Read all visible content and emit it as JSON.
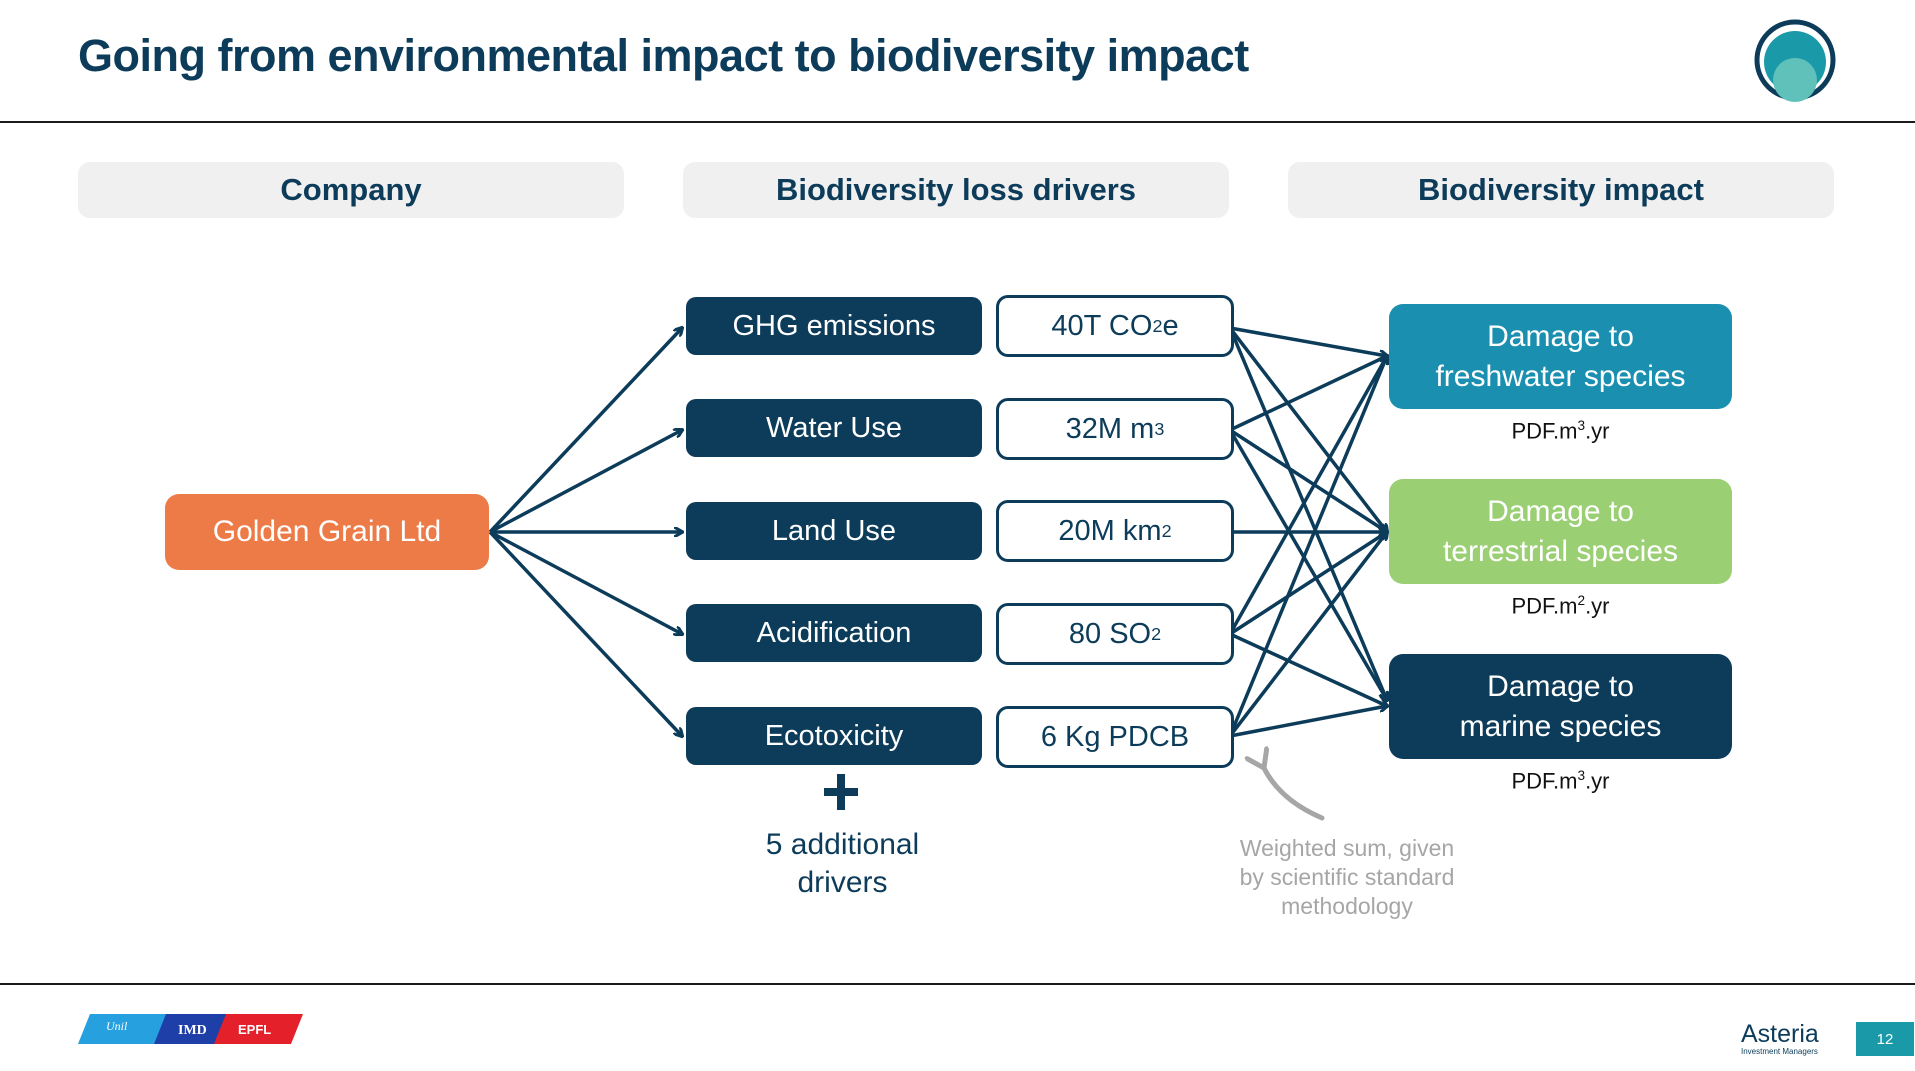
{
  "slide": {
    "title": "Going from environmental impact to biodiversity impact",
    "page_number": "12"
  },
  "headers": {
    "company": "Company",
    "drivers": "Biodiversity loss drivers",
    "impact": "Biodiversity impact"
  },
  "company": {
    "name": "Golden Grain Ltd",
    "color": "#ec7b47"
  },
  "drivers": [
    {
      "label": "GHG emissions",
      "value_main": "40T CO",
      "value_sub": "2",
      "value_suffix": "e"
    },
    {
      "label": "Water Use",
      "value_main": "32M m",
      "value_sup": "3"
    },
    {
      "label": "Land Use",
      "value_main": "20M km",
      "value_sup": "2"
    },
    {
      "label": "Acidification",
      "value_main": "80 SO",
      "value_sub": "2"
    },
    {
      "label": "Ecotoxicity",
      "value_main": "6 Kg PDCB"
    }
  ],
  "additional_drivers": {
    "line1": "5 additional",
    "line2": "drivers"
  },
  "impacts": [
    {
      "line1": "Damage to",
      "line2": "freshwater species",
      "unit_pre": "PDF.m",
      "unit_sup": "3",
      "unit_post": ".yr",
      "color": "#1b8fb0"
    },
    {
      "line1": "Damage to",
      "line2": "terrestrial species",
      "unit_pre": "PDF.m",
      "unit_sup": "2",
      "unit_post": ".yr",
      "color": "#9bcf73"
    },
    {
      "line1": "Damage to",
      "line2": "marine species",
      "unit_pre": "PDF.m",
      "unit_sup": "3",
      "unit_post": ".yr",
      "color": "#0c3c5a"
    }
  ],
  "annotation": {
    "line1": "Weighted sum, given",
    "line2": "by scientific standard",
    "line3": "methodology"
  },
  "footer": {
    "partner_logos": [
      "Unil",
      "IMD",
      "EPFL"
    ],
    "brand": "Asteria",
    "brand_sub": "Investment Managers"
  },
  "colors": {
    "navy": "#0c3c5a",
    "accent_teal": "#1a9aa9",
    "note_grey": "#a6a6a6"
  }
}
